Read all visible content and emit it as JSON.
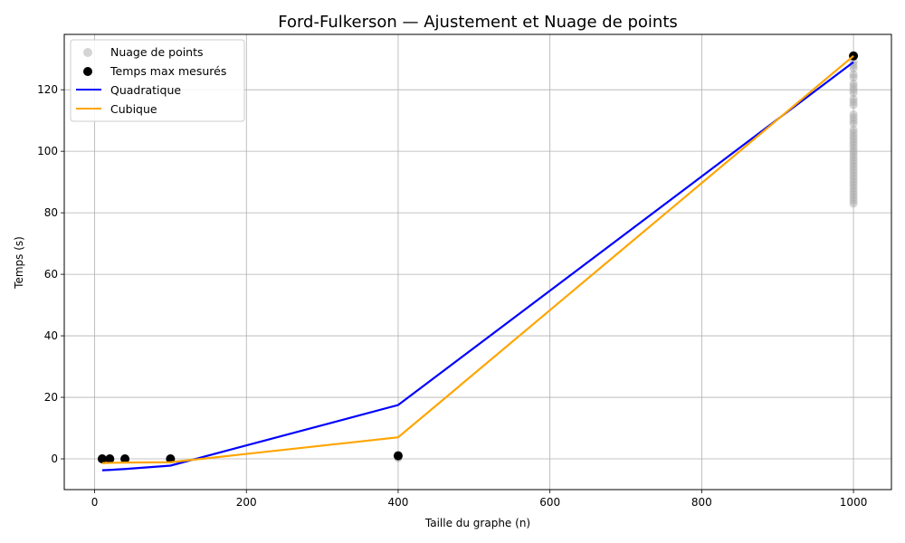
{
  "chart_data": {
    "type": "scatter",
    "title": "Ford-Fulkerson — Ajustement et Nuage de points",
    "xlabel": "Taille du graphe (n)",
    "ylabel": "Temps (s)",
    "xlim": [
      -40,
      1050
    ],
    "ylim": [
      -10,
      138
    ],
    "xticks": [
      0,
      200,
      400,
      600,
      800,
      1000
    ],
    "yticks": [
      0,
      20,
      40,
      60,
      80,
      100,
      120
    ],
    "grid": true,
    "legend_position": "upper-left",
    "series": [
      {
        "name": "Nuage de points",
        "kind": "scatter",
        "color": "#a9a9a9",
        "points": [
          [
            10,
            0
          ],
          [
            20,
            0
          ],
          [
            40,
            0
          ],
          [
            100,
            0
          ],
          [
            400,
            0.2
          ],
          [
            400,
            0.6
          ],
          [
            400,
            1.0
          ],
          [
            1000,
            83
          ],
          [
            1000,
            84
          ],
          [
            1000,
            85
          ],
          [
            1000,
            86
          ],
          [
            1000,
            87
          ],
          [
            1000,
            88
          ],
          [
            1000,
            89
          ],
          [
            1000,
            90
          ],
          [
            1000,
            91
          ],
          [
            1000,
            92
          ],
          [
            1000,
            93
          ],
          [
            1000,
            94
          ],
          [
            1000,
            95
          ],
          [
            1000,
            96
          ],
          [
            1000,
            97
          ],
          [
            1000,
            98
          ],
          [
            1000,
            99
          ],
          [
            1000,
            100
          ],
          [
            1000,
            101
          ],
          [
            1000,
            102
          ],
          [
            1000,
            103
          ],
          [
            1000,
            104
          ],
          [
            1000,
            105
          ],
          [
            1000,
            106
          ],
          [
            1000,
            107
          ],
          [
            1000,
            109
          ],
          [
            1000,
            110
          ],
          [
            1000,
            111
          ],
          [
            1000,
            112
          ],
          [
            1000,
            115
          ],
          [
            1000,
            116
          ],
          [
            1000,
            117
          ],
          [
            1000,
            119
          ],
          [
            1000,
            120
          ],
          [
            1000,
            121
          ],
          [
            1000,
            122
          ],
          [
            1000,
            124
          ],
          [
            1000,
            125
          ],
          [
            1000,
            127
          ],
          [
            1000,
            128
          ],
          [
            1000,
            129
          ]
        ]
      },
      {
        "name": "Temps max mesurés",
        "kind": "scatter",
        "color": "#000000",
        "points": [
          [
            10,
            0
          ],
          [
            20,
            0
          ],
          [
            40,
            0
          ],
          [
            100,
            0
          ],
          [
            400,
            1
          ],
          [
            1000,
            131
          ]
        ]
      },
      {
        "name": "Quadratique",
        "kind": "line",
        "color": "#0000ff",
        "points": [
          [
            10,
            -3.7
          ],
          [
            20,
            -3.6
          ],
          [
            40,
            -3.3
          ],
          [
            100,
            -2.2
          ],
          [
            400,
            17.5
          ],
          [
            1000,
            129
          ]
        ]
      },
      {
        "name": "Cubique",
        "kind": "line",
        "color": "#ffa500",
        "points": [
          [
            10,
            -1.4
          ],
          [
            20,
            -1.3
          ],
          [
            40,
            -1.2
          ],
          [
            100,
            -1.1
          ],
          [
            400,
            7
          ],
          [
            1000,
            131
          ]
        ]
      }
    ]
  }
}
